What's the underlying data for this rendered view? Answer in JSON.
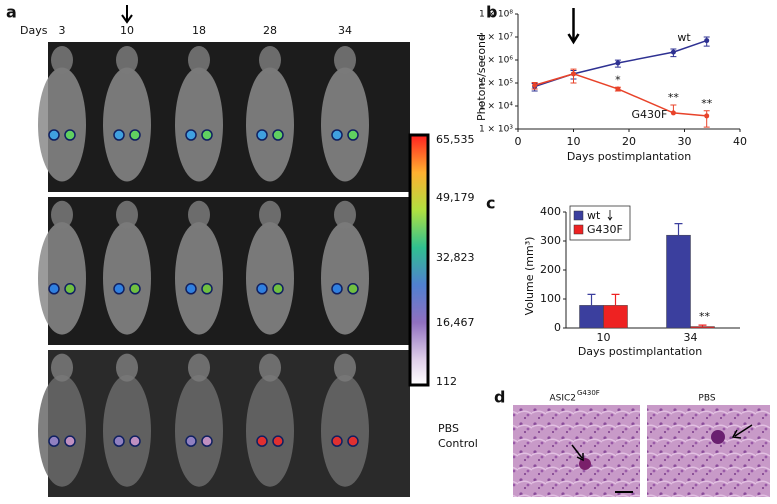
{
  "panel_labels": [
    "a",
    "b",
    "c",
    "d"
  ],
  "panel_a": {
    "days_label": "Days",
    "days": [
      "3",
      "10",
      "18",
      "28",
      "34"
    ],
    "colorbar_ticks": [
      "65,535",
      "49,179",
      "32,823",
      "16,467",
      "112"
    ],
    "control_label": [
      "PBS",
      "Control"
    ]
  },
  "chart_data": [
    {
      "type": "line",
      "yscale": "log",
      "x": [
        3,
        10,
        18,
        28,
        34
      ],
      "series": [
        {
          "name": "wt",
          "color": "#2e3192",
          "values": [
            70000,
            250000,
            740000,
            2200000,
            7000000
          ],
          "errors": [
            25000,
            100000,
            250000,
            800000,
            3000000
          ]
        },
        {
          "name": "G430F",
          "color": "#e8432a",
          "values": [
            80000,
            250000,
            55000,
            5000,
            3700
          ],
          "errors": [
            25000,
            150000,
            10000,
            6000,
            2500
          ]
        }
      ],
      "annotations": [
        "*",
        "**",
        "**"
      ],
      "xlabel": "Days postimplantation",
      "ylabel": "Photons/second",
      "xlim": [
        0,
        40
      ],
      "xticks": [
        0,
        10,
        20,
        30,
        40
      ],
      "ylim": [
        1000,
        100000000
      ],
      "yticks": [
        {
          "value": 1000,
          "label": "1 × 10³"
        },
        {
          "value": 10000,
          "label": "1 × 10⁴"
        },
        {
          "value": 100000,
          "label": "1 × 10⁵"
        },
        {
          "value": 1000000,
          "label": "1 × 10⁶"
        },
        {
          "value": 10000000,
          "label": "1 × 10⁷"
        },
        {
          "value": 100000000,
          "label": "1 × 10⁸"
        }
      ]
    },
    {
      "type": "bar",
      "categories": [
        "10",
        "34"
      ],
      "series": [
        {
          "name": "wt",
          "color": "#3b3f9e",
          "values": [
            78,
            320
          ],
          "errors": [
            38,
            40
          ]
        },
        {
          "name": "G430F",
          "color": "#ee2222",
          "values": [
            78,
            5
          ],
          "errors": [
            38,
            5
          ]
        }
      ],
      "annotations": [
        "**"
      ],
      "xlabel": "Days postimplantation",
      "ylabel": "Volume (mm³)",
      "ylim": [
        0,
        400
      ],
      "yticks": [
        0,
        100,
        200,
        300,
        400
      ],
      "legend": "top-left"
    }
  ],
  "panel_d": {
    "left_label": "ASIC2",
    "left_label_sup": "G430F",
    "right_label": "PBS"
  }
}
